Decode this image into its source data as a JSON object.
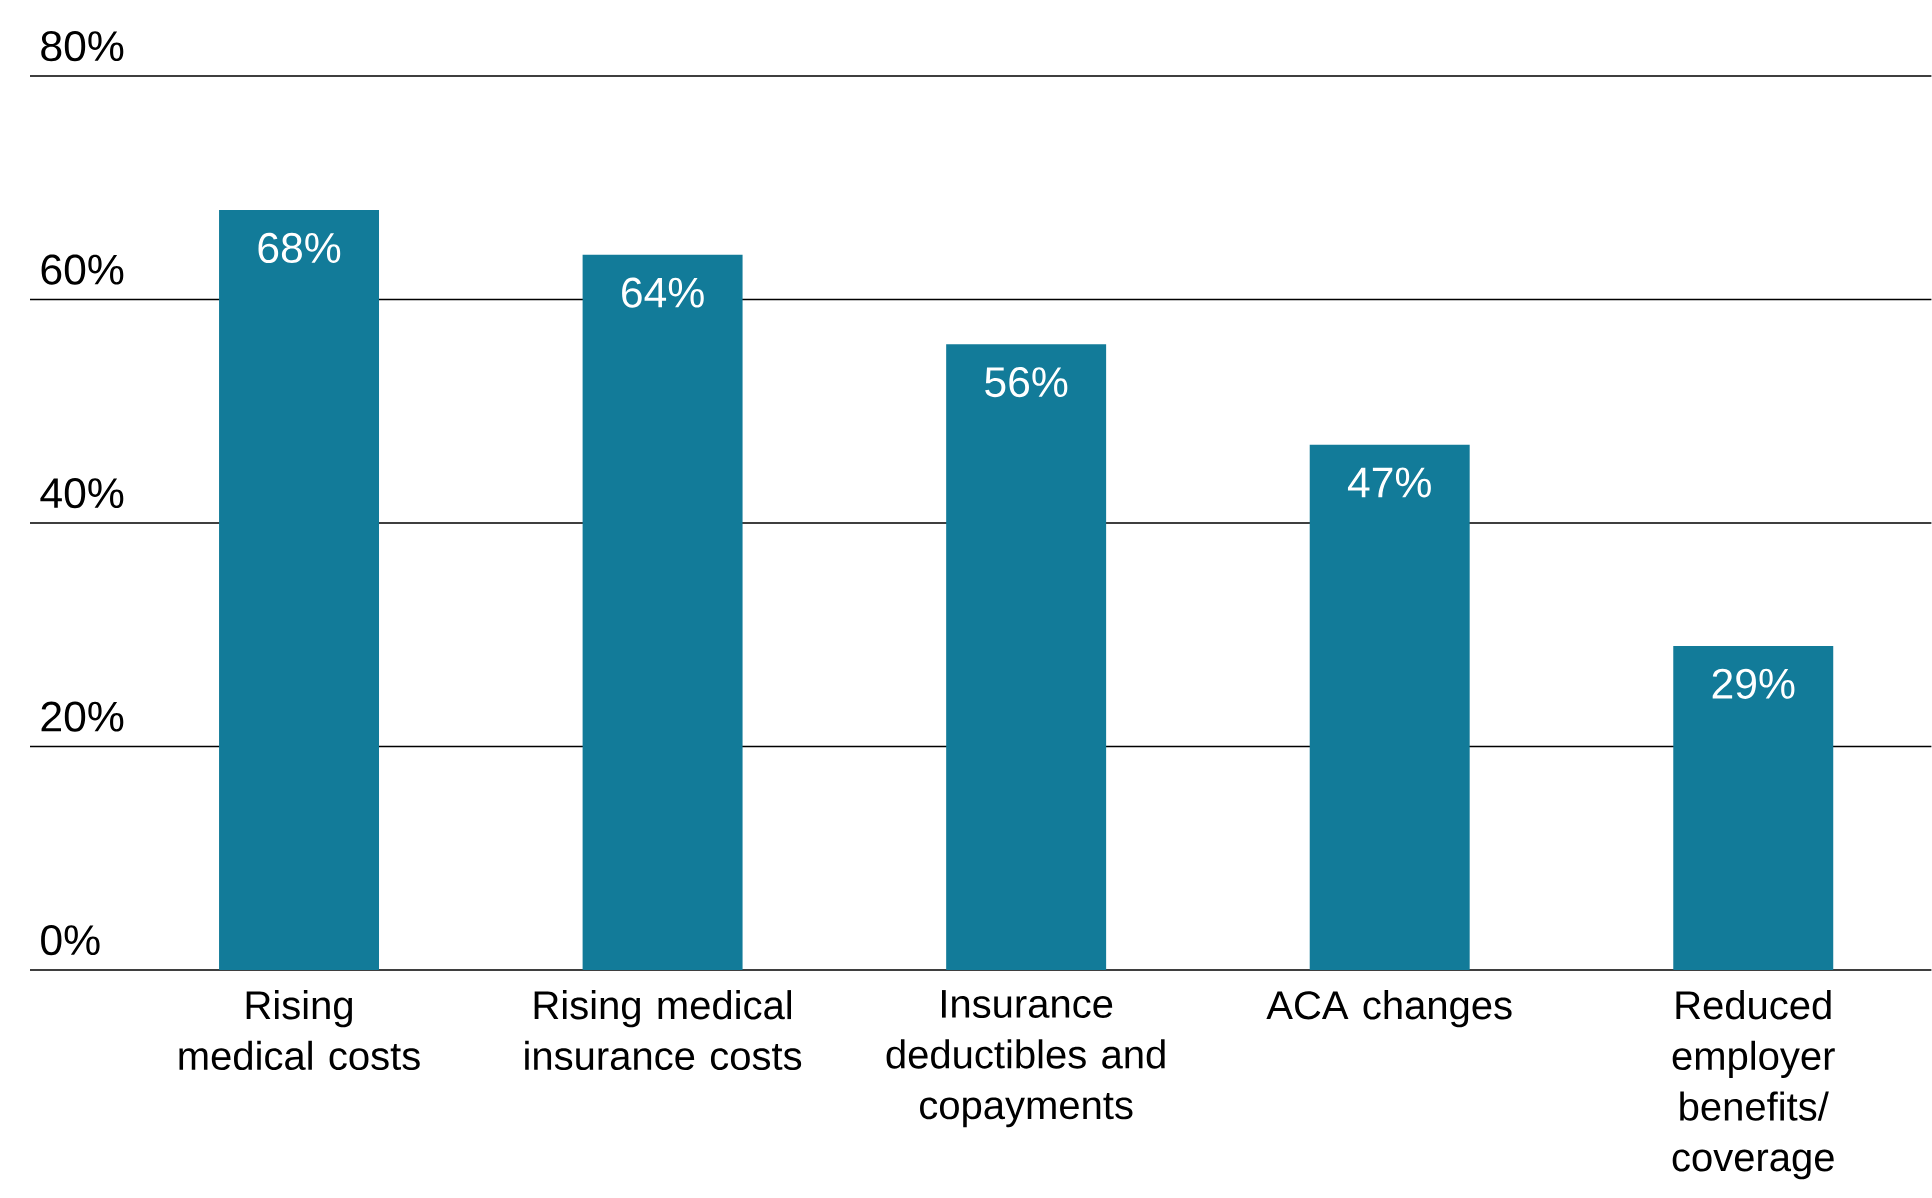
{
  "chart_data": {
    "type": "bar",
    "categories": [
      "Rising medical costs",
      "Rising medical insurance costs",
      "Insurance deductibles and copayments",
      "ACA changes",
      "Reduced employer benefits/ coverage"
    ],
    "values": [
      68,
      64,
      56,
      47,
      29
    ],
    "value_labels": [
      "68%",
      "64%",
      "56%",
      "47%",
      "29%"
    ],
    "color": "#127b99",
    "ylim": [
      0,
      80
    ],
    "yticks": [
      {
        "value": 0,
        "label": "0%"
      },
      {
        "value": 20,
        "label": "20%"
      },
      {
        "value": 40,
        "label": "40%"
      },
      {
        "value": 60,
        "label": "60%"
      },
      {
        "value": 80,
        "label": "80%"
      }
    ],
    "grid": "y"
  }
}
